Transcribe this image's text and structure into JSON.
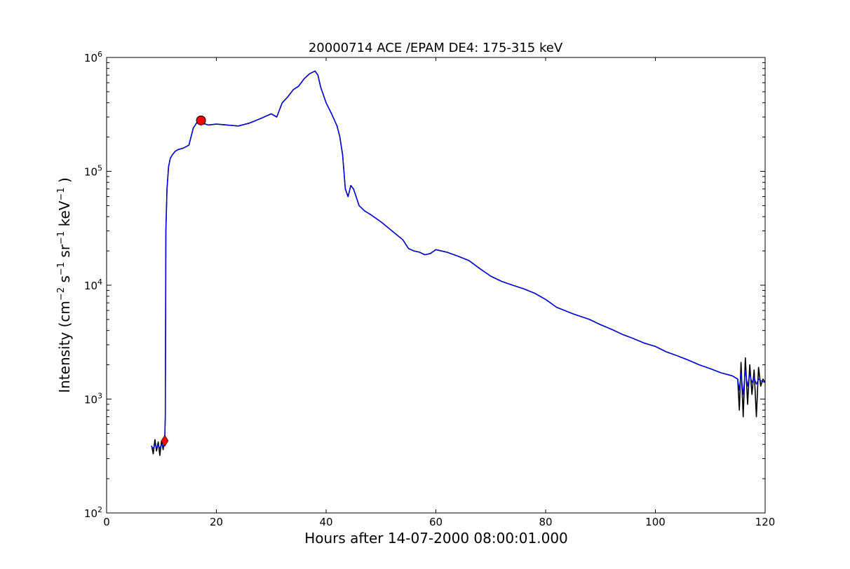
{
  "chart_data": {
    "type": "line",
    "title": "20000714 ACE /EPAM DE4: 175-315 keV",
    "xlabel": "Hours after 14-07-2000 08:00:01.000",
    "ylabel": {
      "prefix": "Intensity (cm",
      "exp1": "−2",
      "mid1": " s",
      "exp2": "−1",
      "mid2": " sr",
      "exp3": "−1",
      "mid3": " keV",
      "exp4": "−1",
      "suffix": " )"
    },
    "xlim": [
      0,
      120
    ],
    "ylim": [
      100,
      1000000
    ],
    "yscale": "log",
    "grid": false,
    "xticks": [
      {
        "value": 0,
        "label": "0"
      },
      {
        "value": 20,
        "label": "20"
      },
      {
        "value": 40,
        "label": "40"
      },
      {
        "value": 60,
        "label": "60"
      },
      {
        "value": 80,
        "label": "80"
      },
      {
        "value": 100,
        "label": "100"
      },
      {
        "value": 120,
        "label": "120"
      }
    ],
    "yticks": [
      {
        "value": 100,
        "base": "10",
        "exp": "2"
      },
      {
        "value": 1000,
        "base": "10",
        "exp": "3"
      },
      {
        "value": 10000,
        "base": "10",
        "exp": "4"
      },
      {
        "value": 100000,
        "base": "10",
        "exp": "5"
      },
      {
        "value": 1000000,
        "base": "10",
        "exp": "6"
      }
    ],
    "series": [
      {
        "color": "#000000",
        "role": "raw",
        "x": [
          8.2,
          8.5,
          8.8,
          9.1,
          9.4,
          9.7,
          10.0,
          10.3,
          10.5,
          10.6,
          10.7,
          10.8,
          11.0,
          11.3,
          11.6,
          12.0,
          12.5,
          13.0,
          14.0,
          15.0,
          15.8,
          16.5,
          17.5,
          18.5,
          20.0,
          22.0,
          24.0,
          26.0,
          28.0,
          30.0,
          31.0,
          32.0,
          33.0,
          34.0,
          35.0,
          36.0,
          37.0,
          38.0,
          38.5,
          39.0,
          40.0,
          41.0,
          42.0,
          42.5,
          43.0,
          43.5,
          44.0,
          44.5,
          45.0,
          46.0,
          47.0,
          48.0,
          50.0,
          52.0,
          54.0,
          55.0,
          56.0,
          57.0,
          58.0,
          59.0,
          60.0,
          62.0,
          64.0,
          66.0,
          68.0,
          70.0,
          72.0,
          74.0,
          76.0,
          78.0,
          80.0,
          82.0,
          85.0,
          88.0,
          90.0,
          92.0,
          94.0,
          96.0,
          98.0,
          100.0,
          102.0,
          104.0,
          106.0,
          108.0,
          110.0,
          112.0,
          114.0,
          115.0,
          115.3,
          115.6,
          116.0,
          116.4,
          116.8,
          117.2,
          117.6,
          118.0,
          118.4,
          118.8,
          119.2,
          119.6,
          120.0
        ],
        "y": [
          390,
          330,
          440,
          350,
          420,
          320,
          430,
          360,
          420,
          450,
          700,
          30000,
          70000,
          110000,
          130000,
          140000,
          150000,
          155000,
          160000,
          170000,
          240000,
          270000,
          265000,
          255000,
          260000,
          255000,
          250000,
          265000,
          290000,
          320000,
          300000,
          400000,
          450000,
          520000,
          560000,
          650000,
          720000,
          760000,
          700000,
          550000,
          400000,
          320000,
          250000,
          200000,
          140000,
          70000,
          60000,
          75000,
          70000,
          50000,
          45000,
          42000,
          36000,
          30000,
          25000,
          21000,
          20000,
          19500,
          18500,
          19000,
          20500,
          19500,
          18000,
          16500,
          14000,
          12000,
          10800,
          10000,
          9300,
          8500,
          7500,
          6400,
          5600,
          5000,
          4500,
          4100,
          3700,
          3400,
          3100,
          2900,
          2600,
          2400,
          2200,
          2000,
          1850,
          1700,
          1600,
          1500,
          800,
          2100,
          700,
          2300,
          900,
          2000,
          1100,
          1800,
          700,
          1900,
          1300,
          1500,
          1400
        ]
      },
      {
        "color": "#0000ff",
        "role": "smoothed",
        "x": [
          8.2,
          8.5,
          8.8,
          9.1,
          9.4,
          9.7,
          10.0,
          10.3,
          10.5,
          10.6,
          10.7,
          10.8,
          11.0,
          11.3,
          11.6,
          12.0,
          12.5,
          13.0,
          14.0,
          15.0,
          15.8,
          16.5,
          17.5,
          18.5,
          20.0,
          22.0,
          24.0,
          26.0,
          28.0,
          30.0,
          31.0,
          32.0,
          33.0,
          34.0,
          35.0,
          36.0,
          37.0,
          38.0,
          38.5,
          39.0,
          40.0,
          41.0,
          42.0,
          42.5,
          43.0,
          43.5,
          44.0,
          44.5,
          45.0,
          46.0,
          47.0,
          48.0,
          50.0,
          52.0,
          54.0,
          55.0,
          56.0,
          57.0,
          58.0,
          59.0,
          60.0,
          62.0,
          64.0,
          66.0,
          68.0,
          70.0,
          72.0,
          74.0,
          76.0,
          78.0,
          80.0,
          82.0,
          85.0,
          88.0,
          90.0,
          92.0,
          94.0,
          96.0,
          98.0,
          100.0,
          102.0,
          104.0,
          106.0,
          108.0,
          110.0,
          112.0,
          114.0,
          115.0,
          115.3,
          115.6,
          116.0,
          116.4,
          116.8,
          117.2,
          117.6,
          118.0,
          118.4,
          118.8,
          119.2,
          119.6,
          120.0
        ],
        "y": [
          380,
          370,
          400,
          375,
          395,
          370,
          400,
          380,
          410,
          440,
          700,
          30000,
          70000,
          110000,
          130000,
          140000,
          150000,
          155000,
          160000,
          170000,
          240000,
          270000,
          265000,
          255000,
          260000,
          255000,
          250000,
          265000,
          290000,
          320000,
          300000,
          400000,
          450000,
          520000,
          560000,
          650000,
          720000,
          760000,
          700000,
          550000,
          400000,
          320000,
          250000,
          200000,
          140000,
          70000,
          60000,
          75000,
          70000,
          50000,
          45000,
          42000,
          36000,
          30000,
          25000,
          21000,
          20000,
          19500,
          18500,
          19000,
          20500,
          19500,
          18000,
          16500,
          14000,
          12000,
          10800,
          10000,
          9300,
          8500,
          7500,
          6400,
          5600,
          5000,
          4500,
          4100,
          3700,
          3400,
          3100,
          2900,
          2600,
          2400,
          2200,
          2000,
          1850,
          1700,
          1600,
          1500,
          1200,
          1700,
          1100,
          1800,
          1300,
          1650,
          1400,
          1550,
          1350,
          1500,
          1450,
          1420,
          1400
        ]
      }
    ],
    "markers": [
      {
        "shape": "circle",
        "color": "#ff0000",
        "x": 17.2,
        "y": 280000
      },
      {
        "shape": "diamond",
        "color": "#ff0000",
        "x": 10.6,
        "y": 430
      }
    ]
  }
}
